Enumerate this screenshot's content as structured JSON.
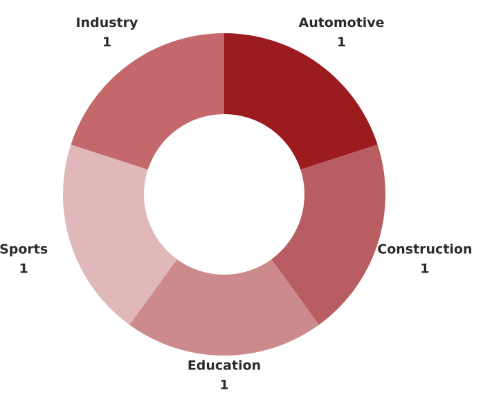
{
  "chart_data": {
    "type": "donut",
    "categories": [
      "Automotive",
      "Construction",
      "Education",
      "Sports",
      "Industry"
    ],
    "values": [
      1,
      1,
      1,
      1,
      1
    ],
    "colors": [
      "#9b1b1f",
      "#b85d61",
      "#cc8a8c",
      "#e0b8b9",
      "#c4686b"
    ]
  }
}
